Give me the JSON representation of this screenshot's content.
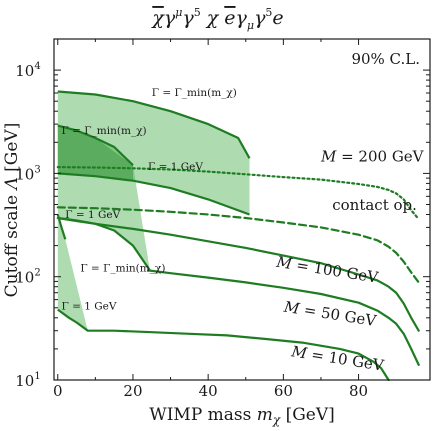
{
  "chart_data": {
    "type": "line",
    "title": "χ̄γ^μγ^5χ ēγ_μγ^5e",
    "xlabel": "WIMP mass m_χ [GeV]",
    "ylabel": "Cutoff scale Λ [GeV]",
    "xlim": [
      -1,
      99
    ],
    "ylim": [
      10,
      20000
    ],
    "yscale": "log",
    "grid": false,
    "x_ticks": [
      0,
      20,
      40,
      60,
      80
    ],
    "y_ticks": [
      10,
      100,
      1000,
      10000
    ],
    "y_tick_labels": [
      "10^1",
      "10^2",
      "10^3",
      "10^4"
    ],
    "confidence_label": "90% C.L.",
    "colors": {
      "line": "#1e7d22",
      "fill": "#4caf50",
      "fill_dark": "#2e8b34"
    },
    "series": [
      {
        "name": "M = 200 GeV",
        "style": "dotted",
        "x": [
          0,
          10,
          20,
          30,
          40,
          50,
          60,
          70,
          80,
          85,
          88,
          90,
          92,
          94,
          96
        ],
        "y": [
          1150,
          1140,
          1120,
          1090,
          1040,
          980,
          920,
          870,
          790,
          740,
          690,
          640,
          560,
          440,
          360
        ]
      },
      {
        "name": "contact op.",
        "style": "dashed",
        "x": [
          0,
          10,
          20,
          30,
          40,
          50,
          60,
          70,
          80,
          85,
          88,
          90,
          92,
          94,
          96
        ],
        "y": [
          470,
          460,
          445,
          425,
          400,
          370,
          335,
          300,
          255,
          225,
          195,
          170,
          140,
          110,
          88
        ]
      },
      {
        "name": "M = 100 GeV",
        "style": "solid",
        "x": [
          0,
          5,
          10,
          20,
          30,
          40,
          50,
          60,
          70,
          80,
          85,
          88,
          90,
          92,
          94,
          96
        ],
        "y": [
          370,
          345,
          325,
          290,
          255,
          220,
          190,
          160,
          135,
          105,
          92,
          80,
          70,
          55,
          40,
          30
        ]
      },
      {
        "name": "M = 50 GeV",
        "style": "solid",
        "x": [
          24,
          30,
          40,
          50,
          60,
          70,
          80,
          85,
          88,
          90,
          92,
          94,
          96
        ],
        "y": [
          115,
          108,
          98,
          88,
          78,
          68,
          56,
          47,
          40,
          35,
          28,
          20,
          14
        ]
      },
      {
        "name": "M = 10 GeV",
        "style": "solid",
        "x": [
          8,
          15,
          25,
          35,
          45,
          55,
          65,
          75,
          80,
          84,
          86,
          88
        ],
        "y": [
          30,
          30,
          29,
          28,
          27,
          25,
          23,
          20,
          18,
          15,
          13,
          10
        ]
      }
    ],
    "bands": [
      {
        "name": "M = 200 GeV band",
        "upper_x": [
          0,
          10,
          20,
          30,
          40,
          48,
          51
        ],
        "upper_y": [
          6200,
          5800,
          5000,
          4000,
          3000,
          2200,
          1400
        ],
        "lower_x": [
          51,
          40,
          30,
          20,
          10,
          0
        ],
        "lower_y": [
          400,
          560,
          720,
          850,
          940,
          1000
        ]
      },
      {
        "name": "M = 100 GeV band",
        "upper_x": [
          0,
          5,
          10,
          15,
          20
        ],
        "upper_y": [
          2900,
          2600,
          2200,
          1800,
          1200
        ],
        "lower_x": [
          24.5,
          20,
          15,
          10,
          5,
          0
        ],
        "lower_y": [
          115,
          200,
          280,
          325,
          350,
          370
        ]
      },
      {
        "name": "M = 50 GeV band",
        "upper_x": [
          0,
          1,
          2
        ],
        "upper_y": [
          400,
          300,
          230
        ],
        "lower_x": [
          8,
          5,
          3,
          0
        ],
        "lower_y": [
          30,
          36,
          40,
          48
        ]
      }
    ],
    "gamma_boundaries": [
      {
        "label": "Γ = Γ_min(m_χ)",
        "x": [
          0,
          10,
          20,
          30,
          40,
          48,
          51
        ],
        "y": [
          6200,
          5800,
          5000,
          4000,
          3000,
          2200,
          1400
        ]
      },
      {
        "label": "Γ = 1 GeV",
        "x": [
          51,
          40,
          30,
          20,
          10,
          0
        ],
        "y": [
          400,
          560,
          720,
          850,
          940,
          1000
        ]
      },
      {
        "label": "Γ = Γ_min(m_χ)",
        "x": [
          0,
          5,
          10,
          15,
          20
        ],
        "y": [
          2900,
          2600,
          2200,
          1800,
          1200
        ]
      },
      {
        "label": "Γ = 1 GeV",
        "x": [
          24.5,
          20,
          15,
          10,
          5,
          0
        ],
        "y": [
          115,
          200,
          280,
          325,
          350,
          370
        ]
      },
      {
        "label": "Γ = Γ_min(m_χ)",
        "x": [
          0,
          1,
          2
        ],
        "y": [
          400,
          300,
          230
        ]
      },
      {
        "label": "Γ = 1 GeV",
        "x": [
          8,
          5,
          3,
          0
        ],
        "y": [
          30,
          36,
          40,
          48
        ]
      }
    ],
    "curve_labels": [
      {
        "text": "M = 200 GeV",
        "x": 70,
        "y": 1300
      },
      {
        "text": "contact op.",
        "x": 73,
        "y": 440
      },
      {
        "text": "M = 100 GeV",
        "x": 58,
        "y": 125
      },
      {
        "text": "M = 50 GeV",
        "x": 60,
        "y": 46
      },
      {
        "text": "M = 10 GeV",
        "x": 62,
        "y": 17
      }
    ],
    "gamma_labels": [
      {
        "text": "Γ = Γ_min(m_χ)",
        "x": 25,
        "y": 5600
      },
      {
        "text": "Γ = Γ_min(m_χ)",
        "x": 1,
        "y": 2400
      },
      {
        "text": "Γ = 1 GeV",
        "x": 24,
        "y": 1080
      },
      {
        "text": "Γ = 1 GeV",
        "x": 2,
        "y": 370
      },
      {
        "text": "Γ = Γ_min(m_χ)",
        "x": 6,
        "y": 112
      },
      {
        "text": "Γ = 1 GeV",
        "x": 1,
        "y": 48
      }
    ]
  }
}
